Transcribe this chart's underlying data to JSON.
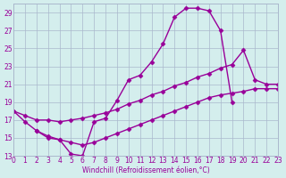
{
  "line1_x": [
    0,
    1,
    2,
    3,
    4,
    5,
    6,
    7,
    8,
    9,
    10,
    11,
    12,
    13,
    14,
    15,
    16,
    17,
    18,
    19
  ],
  "line1_y": [
    18.0,
    16.8,
    15.8,
    15.0,
    14.8,
    13.2,
    13.0,
    16.8,
    17.2,
    19.2,
    21.5,
    22.0,
    23.5,
    25.5,
    28.5,
    29.5,
    29.5,
    29.2,
    27.0,
    19.0
  ],
  "line2_x": [
    0,
    1,
    2,
    3,
    4,
    5,
    6,
    7,
    8,
    9,
    10,
    11,
    12,
    13,
    14,
    15,
    16,
    17,
    18,
    19,
    20,
    21,
    22,
    23
  ],
  "line2_y": [
    18.0,
    17.5,
    17.0,
    17.0,
    16.8,
    17.0,
    17.2,
    17.5,
    17.8,
    18.2,
    18.8,
    19.2,
    19.8,
    20.2,
    20.8,
    21.2,
    21.8,
    22.2,
    22.8,
    23.2,
    24.8,
    21.5,
    21.0,
    21.0
  ],
  "line3_x": [
    2,
    3,
    4,
    5,
    6,
    7,
    8,
    9,
    10,
    11,
    12,
    13,
    14,
    15,
    16,
    17,
    18,
    19,
    20,
    21,
    22,
    23
  ],
  "line3_y": [
    15.8,
    15.2,
    14.8,
    14.5,
    14.2,
    14.5,
    15.0,
    15.5,
    16.0,
    16.5,
    17.0,
    17.5,
    18.0,
    18.5,
    19.0,
    19.5,
    19.8,
    20.0,
    20.2,
    20.5,
    20.5,
    20.5
  ],
  "xlabel": "Windchill (Refroidissement éolien,°C)",
  "ylim": [
    13,
    30
  ],
  "xlim": [
    0,
    23
  ],
  "yticks": [
    13,
    15,
    17,
    19,
    21,
    23,
    25,
    27,
    29
  ],
  "xticks": [
    0,
    1,
    2,
    3,
    4,
    5,
    6,
    7,
    8,
    9,
    10,
    11,
    12,
    13,
    14,
    15,
    16,
    17,
    18,
    19,
    20,
    21,
    22,
    23
  ],
  "line_color": "#990099",
  "bg_color": "#d4eeed",
  "grid_color": "#aab8cc",
  "marker": "D",
  "markersize": 2.5,
  "linewidth": 1.0
}
